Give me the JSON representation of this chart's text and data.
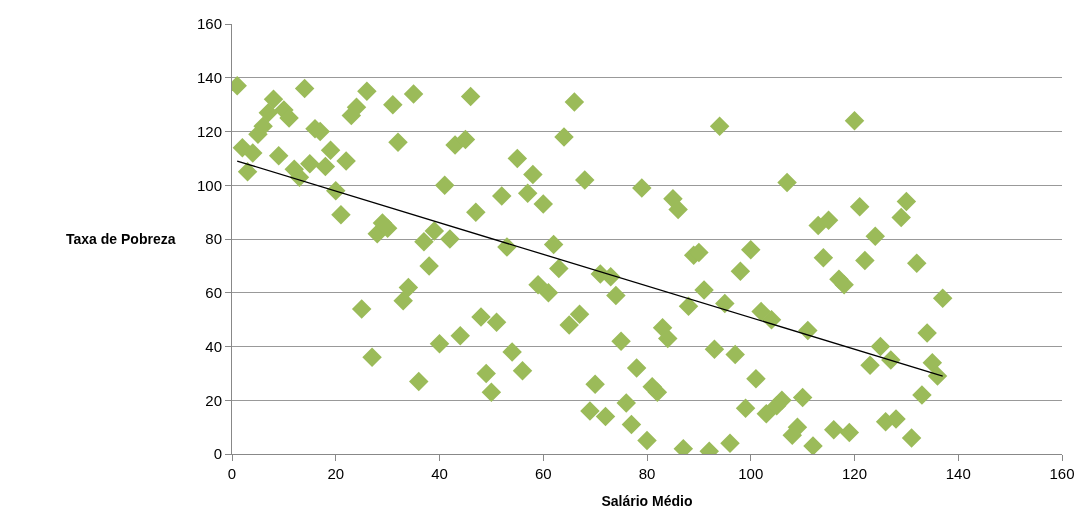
{
  "chart_data": {
    "type": "scatter",
    "xlabel": "Salário Médio",
    "ylabel": "Taxa de Pobreza",
    "xlim": [
      0,
      160
    ],
    "xticks": [
      0,
      20,
      40,
      60,
      80,
      100,
      120,
      140,
      160
    ],
    "ylim": [
      0,
      160
    ],
    "yticks": [
      0,
      20,
      40,
      60,
      80,
      100,
      120,
      140,
      160
    ],
    "grid": "y",
    "marker": "diamond",
    "series": [
      {
        "color": "#9bbb59",
        "x": [
          1,
          2,
          3,
          4,
          5,
          6,
          7,
          8,
          9,
          10,
          11,
          12,
          13,
          14,
          15,
          16,
          17,
          18,
          19,
          20,
          21,
          22,
          23,
          24,
          25,
          26,
          27,
          28,
          29,
          30,
          31,
          32,
          33,
          34,
          35,
          36,
          37,
          38,
          39,
          40,
          41,
          42,
          43,
          44,
          45,
          46,
          47,
          48,
          49,
          50,
          51,
          52,
          53,
          54,
          55,
          56,
          57,
          58,
          59,
          60,
          61,
          62,
          63,
          64,
          65,
          66,
          67,
          68,
          69,
          70,
          71,
          72,
          73,
          74,
          75,
          76,
          77,
          78,
          79,
          80,
          81,
          82,
          83,
          84,
          85,
          86,
          87,
          88,
          89,
          90,
          91,
          92,
          93,
          94,
          95,
          96,
          97,
          98,
          99,
          100,
          101,
          102,
          103,
          104,
          105,
          106,
          107,
          108,
          109,
          110,
          111,
          112,
          113,
          114,
          115,
          116,
          117,
          118,
          119,
          120,
          121,
          122,
          123,
          124,
          125,
          126,
          127,
          128,
          129,
          130,
          131,
          132,
          133,
          134,
          135,
          136,
          137
        ],
        "values": [
          137,
          114,
          105,
          112,
          119,
          122,
          127,
          132,
          111,
          128,
          125,
          106,
          103,
          136,
          108,
          121,
          120,
          107,
          113,
          98,
          89,
          109,
          126,
          129,
          54,
          135,
          36,
          82,
          86,
          84,
          130,
          116,
          57,
          62,
          134,
          27,
          79,
          70,
          83,
          41,
          100,
          80,
          115,
          44,
          117,
          133,
          90,
          51,
          30,
          23,
          49,
          96,
          77,
          38,
          110,
          31,
          97,
          104,
          63,
          93,
          60,
          78,
          69,
          118,
          48,
          131,
          52,
          102,
          16,
          26,
          67,
          14,
          66,
          59,
          42,
          19,
          11,
          32,
          99,
          5,
          25,
          23,
          47,
          43,
          95,
          91,
          2,
          55,
          74,
          75,
          61,
          1,
          39,
          122,
          56,
          4,
          37,
          68,
          17,
          76,
          28,
          53,
          15,
          50,
          18,
          20,
          101,
          7,
          10,
          21,
          46,
          3,
          85,
          73,
          87,
          9,
          65,
          63,
          8,
          124,
          92,
          72,
          33,
          81,
          40,
          12,
          35,
          13,
          88,
          94,
          6,
          71,
          22,
          45,
          34,
          29,
          58
        ]
      },
      {
        "type": "line",
        "color": "#000000",
        "marker": "none",
        "x": [
          1,
          137
        ],
        "values": [
          109,
          29
        ]
      }
    ]
  }
}
